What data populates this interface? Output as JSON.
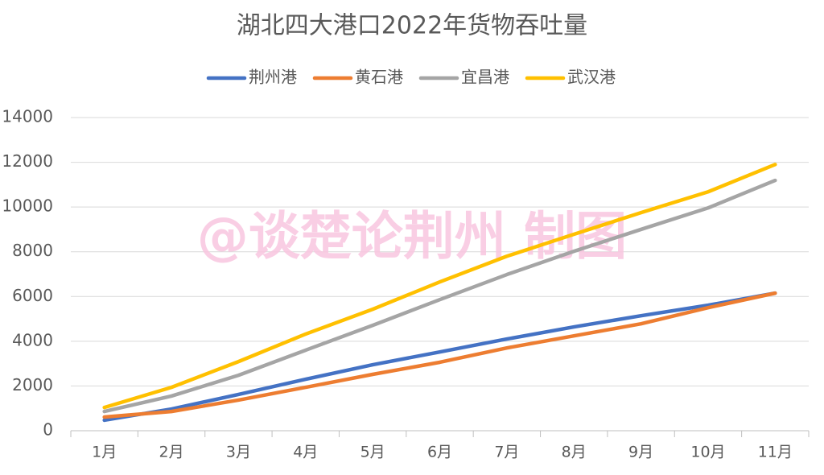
{
  "chart_data": {
    "type": "line",
    "title": "湖北四大港口2022年货物吞吐量",
    "watermark": "@谈楚论荆州 制图",
    "categories": [
      "1月",
      "2月",
      "3月",
      "4月",
      "5月",
      "6月",
      "7月",
      "8月",
      "9月",
      "10月",
      "11月"
    ],
    "series": [
      {
        "name": "荆州港",
        "color": "#4472c4",
        "values": [
          470,
          970,
          1620,
          2300,
          2950,
          3520,
          4100,
          4640,
          5140,
          5610,
          6150
        ]
      },
      {
        "name": "黄石港",
        "color": "#ed7d31",
        "values": [
          610,
          860,
          1370,
          1940,
          2520,
          3060,
          3700,
          4240,
          4780,
          5500,
          6150
        ]
      },
      {
        "name": "宜昌港",
        "color": "#a5a5a5",
        "values": [
          860,
          1550,
          2480,
          3600,
          4710,
          5860,
          6980,
          8020,
          9000,
          9960,
          11190
        ]
      },
      {
        "name": "武汉港",
        "color": "#ffc000",
        "values": [
          1040,
          1940,
          3090,
          4320,
          5430,
          6650,
          7800,
          8780,
          9750,
          10680,
          11900
        ]
      }
    ],
    "ylim": [
      0,
      14000
    ],
    "yticks": [
      0,
      2000,
      4000,
      6000,
      8000,
      10000,
      12000,
      14000
    ],
    "grid": true,
    "legend": "top"
  }
}
